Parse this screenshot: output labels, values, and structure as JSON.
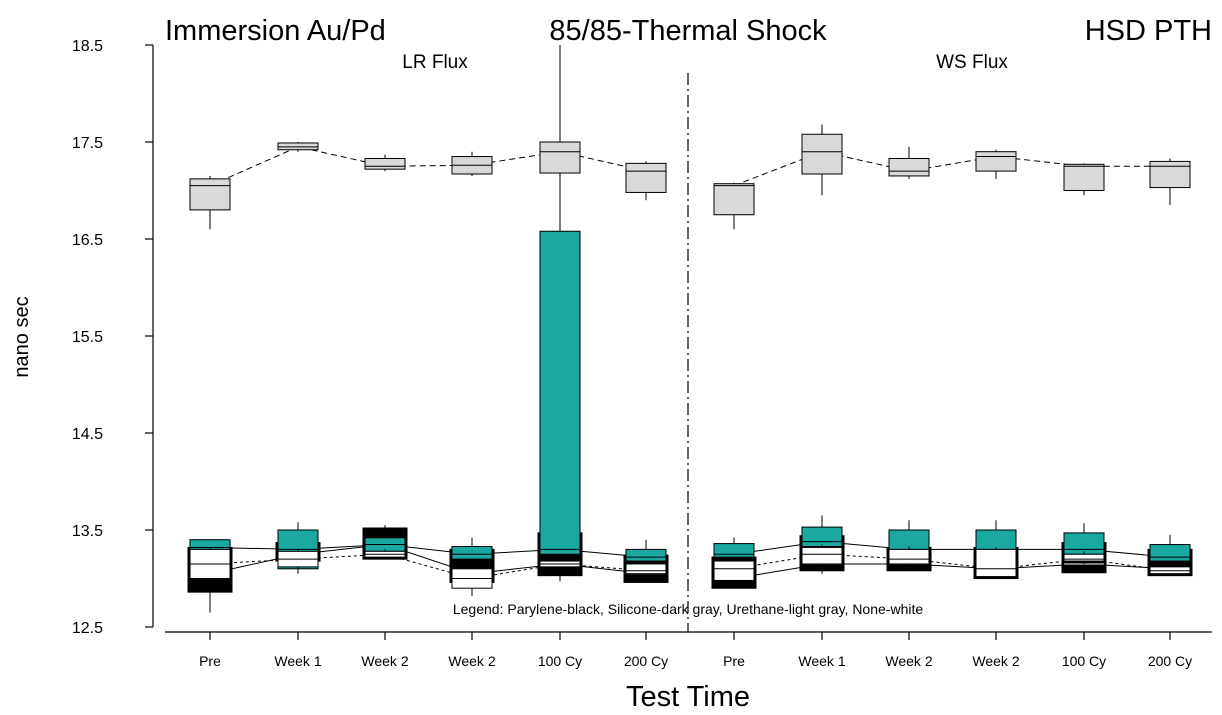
{
  "chart_data": {
    "type": "box",
    "title_left": "Immersion Au/Pd",
    "title_center": "85/85-Thermal Shock",
    "title_right": "HSD PTH",
    "panel_left_label": "LR Flux",
    "panel_right_label": "WS Flux",
    "xlabel": "Test Time",
    "ylabel": "nano sec",
    "legend_text": "Legend: Parylene-black, Silicone-dark gray, Urethane-light gray, None-white",
    "ylim": [
      12.5,
      18.5
    ],
    "yticks": [
      "12.5",
      "13.5",
      "14.5",
      "15.5",
      "16.5",
      "17.5",
      "18.5"
    ],
    "categories": [
      "Pre",
      "Week 1",
      "Week 2",
      "Week 2",
      "100 Cy",
      "200 Cy",
      "Pre",
      "Week 1",
      "Week 2",
      "Week 2",
      "100 Cy",
      "200 Cy"
    ],
    "series": [
      {
        "name": "Urethane",
        "fill": "#d9d9d9",
        "stroke": "#000000",
        "dash": "6,4",
        "boxes": [
          {
            "min": 16.6,
            "q1": 16.8,
            "median": 17.05,
            "q3": 17.12,
            "max": 17.15
          },
          {
            "min": 17.4,
            "q1": 17.42,
            "median": 17.45,
            "q3": 17.49,
            "max": 17.5
          },
          {
            "min": 17.2,
            "q1": 17.22,
            "median": 17.25,
            "q3": 17.33,
            "max": 17.37
          },
          {
            "min": 17.15,
            "q1": 17.17,
            "median": 17.26,
            "q3": 17.35,
            "max": 17.4
          },
          {
            "min": 16.0,
            "q1": 17.18,
            "median": 17.4,
            "q3": 17.5,
            "max": 18.5
          },
          {
            "min": 16.9,
            "q1": 16.98,
            "median": 17.2,
            "q3": 17.28,
            "max": 17.3
          },
          {
            "min": 16.6,
            "q1": 16.75,
            "median": 17.05,
            "q3": 17.07,
            "max": 17.08
          },
          {
            "min": 16.95,
            "q1": 17.17,
            "median": 17.4,
            "q3": 17.58,
            "max": 17.68
          },
          {
            "min": 17.12,
            "q1": 17.15,
            "median": 17.2,
            "q3": 17.33,
            "max": 17.45
          },
          {
            "min": 17.12,
            "q1": 17.2,
            "median": 17.35,
            "q3": 17.4,
            "max": 17.42
          },
          {
            "min": 16.95,
            "q1": 17.0,
            "median": 17.25,
            "q3": 17.27,
            "max": 17.28
          },
          {
            "min": 16.85,
            "q1": 17.03,
            "median": 17.25,
            "q3": 17.3,
            "max": 17.33
          }
        ]
      },
      {
        "name": "Parylene",
        "fill": "#000000",
        "stroke": "#000000",
        "dash": "",
        "boxes": [
          {
            "min": 12.88,
            "q1": 12.88,
            "median": 13.05,
            "q3": 13.3,
            "max": 13.3
          },
          {
            "min": 13.15,
            "q1": 13.2,
            "median": 13.25,
            "q3": 13.35,
            "max": 13.37
          },
          {
            "min": 13.2,
            "q1": 13.22,
            "median": 13.35,
            "q3": 13.5,
            "max": 13.55
          },
          {
            "min": 12.98,
            "q1": 12.98,
            "median": 13.05,
            "q3": 13.28,
            "max": 13.28
          },
          {
            "min": 13.05,
            "q1": 13.05,
            "median": 13.15,
            "q3": 13.45,
            "max": 13.5
          },
          {
            "min": 12.98,
            "q1": 12.98,
            "median": 13.05,
            "q3": 13.22,
            "max": 13.22
          },
          {
            "min": 12.92,
            "q1": 12.92,
            "median": 13.0,
            "q3": 13.2,
            "max": 13.2
          },
          {
            "min": 13.1,
            "q1": 13.1,
            "median": 13.15,
            "q3": 13.42,
            "max": 13.42
          },
          {
            "min": 13.1,
            "q1": 13.1,
            "median": 13.15,
            "q3": 13.3,
            "max": 13.3
          },
          {
            "min": 13.02,
            "q1": 13.02,
            "median": 13.1,
            "q3": 13.3,
            "max": 13.3
          },
          {
            "min": 13.08,
            "q1": 13.08,
            "median": 13.15,
            "q3": 13.35,
            "max": 13.35
          },
          {
            "min": 13.05,
            "q1": 13.05,
            "median": 13.1,
            "q3": 13.28,
            "max": 13.28
          }
        ]
      },
      {
        "name": "Silicone",
        "fill": "#1aa8a0",
        "stroke": "#000000",
        "dash": "",
        "boxes": [
          {
            "min": 13.3,
            "q1": 13.3,
            "median": 13.32,
            "q3": 13.4,
            "max": 13.4
          },
          {
            "min": 13.1,
            "q1": 13.1,
            "median": 13.3,
            "q3": 13.5,
            "max": 13.58
          },
          {
            "min": 13.2,
            "q1": 13.28,
            "median": 13.35,
            "q3": 13.42,
            "max": 13.5
          },
          {
            "min": 13.15,
            "q1": 13.2,
            "median": 13.25,
            "q3": 13.33,
            "max": 13.42
          },
          {
            "min": 13.2,
            "q1": 13.25,
            "median": 13.3,
            "q3": 16.58,
            "max": 16.6
          },
          {
            "min": 13.15,
            "q1": 13.18,
            "median": 13.22,
            "q3": 13.3,
            "max": 13.4
          },
          {
            "min": 13.2,
            "q1": 13.22,
            "median": 13.25,
            "q3": 13.36,
            "max": 13.42
          },
          {
            "min": 13.3,
            "q1": 13.33,
            "median": 13.38,
            "q3": 13.53,
            "max": 13.65
          },
          {
            "min": 13.2,
            "q1": 13.25,
            "median": 13.3,
            "q3": 13.5,
            "max": 13.6
          },
          {
            "min": 13.2,
            "q1": 13.25,
            "median": 13.3,
            "q3": 13.5,
            "max": 13.6
          },
          {
            "min": 13.2,
            "q1": 13.25,
            "median": 13.3,
            "q3": 13.47,
            "max": 13.57
          },
          {
            "min": 13.15,
            "q1": 13.18,
            "median": 13.22,
            "q3": 13.35,
            "max": 13.45
          }
        ]
      },
      {
        "name": "None",
        "fill": "#ffffff",
        "stroke": "#000000",
        "dash": "3,3",
        "boxes": [
          {
            "min": 12.65,
            "q1": 13.0,
            "median": 13.15,
            "q3": 13.3,
            "max": 13.32
          },
          {
            "min": 13.05,
            "q1": 13.12,
            "median": 13.2,
            "q3": 13.28,
            "max": 13.3
          },
          {
            "min": 13.2,
            "q1": 13.22,
            "median": 13.25,
            "q3": 13.28,
            "max": 13.3
          },
          {
            "min": 12.82,
            "q1": 12.9,
            "median": 13.0,
            "q3": 13.1,
            "max": 13.15
          },
          {
            "min": 12.97,
            "q1": 13.12,
            "median": 13.15,
            "q3": 13.18,
            "max": 13.2
          },
          {
            "min": 13.0,
            "q1": 13.05,
            "median": 13.08,
            "q3": 13.15,
            "max": 13.18
          },
          {
            "min": 12.95,
            "q1": 12.98,
            "median": 13.1,
            "q3": 13.18,
            "max": 13.2
          },
          {
            "min": 13.05,
            "q1": 13.15,
            "median": 13.25,
            "q3": 13.32,
            "max": 13.35
          },
          {
            "min": 13.1,
            "q1": 13.15,
            "median": 13.2,
            "q3": 13.3,
            "max": 13.33
          },
          {
            "min": 13.0,
            "q1": 13.02,
            "median": 13.1,
            "q3": 13.3,
            "max": 13.32
          },
          {
            "min": 13.15,
            "q1": 13.18,
            "median": 13.2,
            "q3": 13.25,
            "max": 13.28
          },
          {
            "min": 13.03,
            "q1": 13.05,
            "median": 13.08,
            "q3": 13.12,
            "max": 13.15
          }
        ]
      }
    ]
  }
}
